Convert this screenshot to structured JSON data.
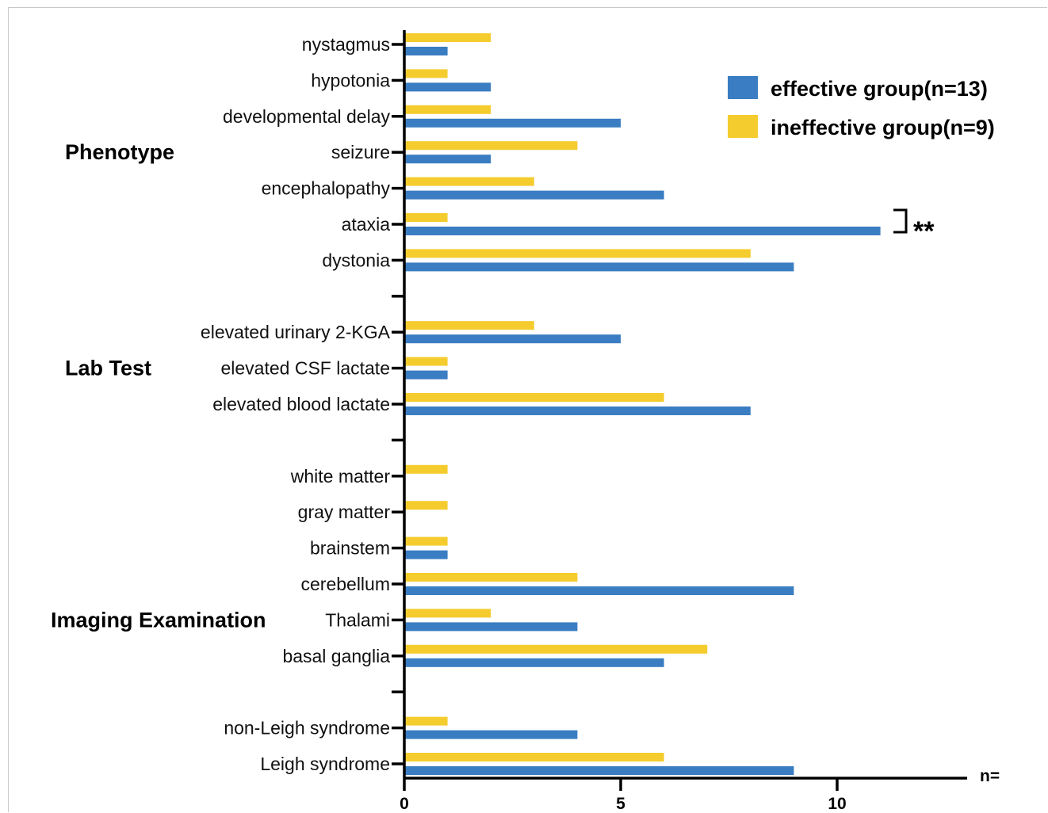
{
  "chart_data": {
    "type": "bar",
    "orientation": "horizontal",
    "title": "",
    "xlabel": "n=",
    "ylabel": "",
    "xlim": [
      0,
      13
    ],
    "x_ticks": [
      "0",
      "5",
      "10"
    ],
    "grid": false,
    "legend_position": "top-right",
    "groups": [
      {
        "label": "Phenotype",
        "first_category": 0,
        "last_category": 6
      },
      {
        "label": "Lab Test",
        "first_category": 8,
        "last_category": 10
      },
      {
        "label": "Imaging Examination",
        "first_category": 12,
        "last_category": 20
      }
    ],
    "categories": [
      "nystagmus",
      "hypotonia",
      "developmental delay",
      "seizure",
      "encephalopathy",
      "ataxia",
      "dystonia",
      "",
      "elevated urinary 2-KGA",
      "elevated CSF lactate",
      "elevated blood lactate",
      "",
      "white matter",
      "gray matter",
      "brainstem",
      "cerebellum",
      "Thalami",
      "basal ganglia",
      "",
      "non-Leigh syndrome",
      "Leigh syndrome"
    ],
    "series": [
      {
        "name": "effective group(n=13)",
        "color": "#3a7dc2",
        "values": [
          1,
          2,
          5,
          2,
          6,
          11,
          9,
          null,
          5,
          1,
          8,
          null,
          0,
          0,
          1,
          9,
          4,
          6,
          null,
          4,
          9
        ]
      },
      {
        "name": "ineffective group(n=9)",
        "color": "#f5cc2e",
        "values": [
          2,
          1,
          2,
          4,
          3,
          1,
          8,
          null,
          3,
          1,
          6,
          null,
          1,
          1,
          1,
          4,
          2,
          7,
          null,
          1,
          6
        ]
      }
    ],
    "annotations": [
      {
        "text": "**",
        "category": "ataxia"
      }
    ]
  }
}
